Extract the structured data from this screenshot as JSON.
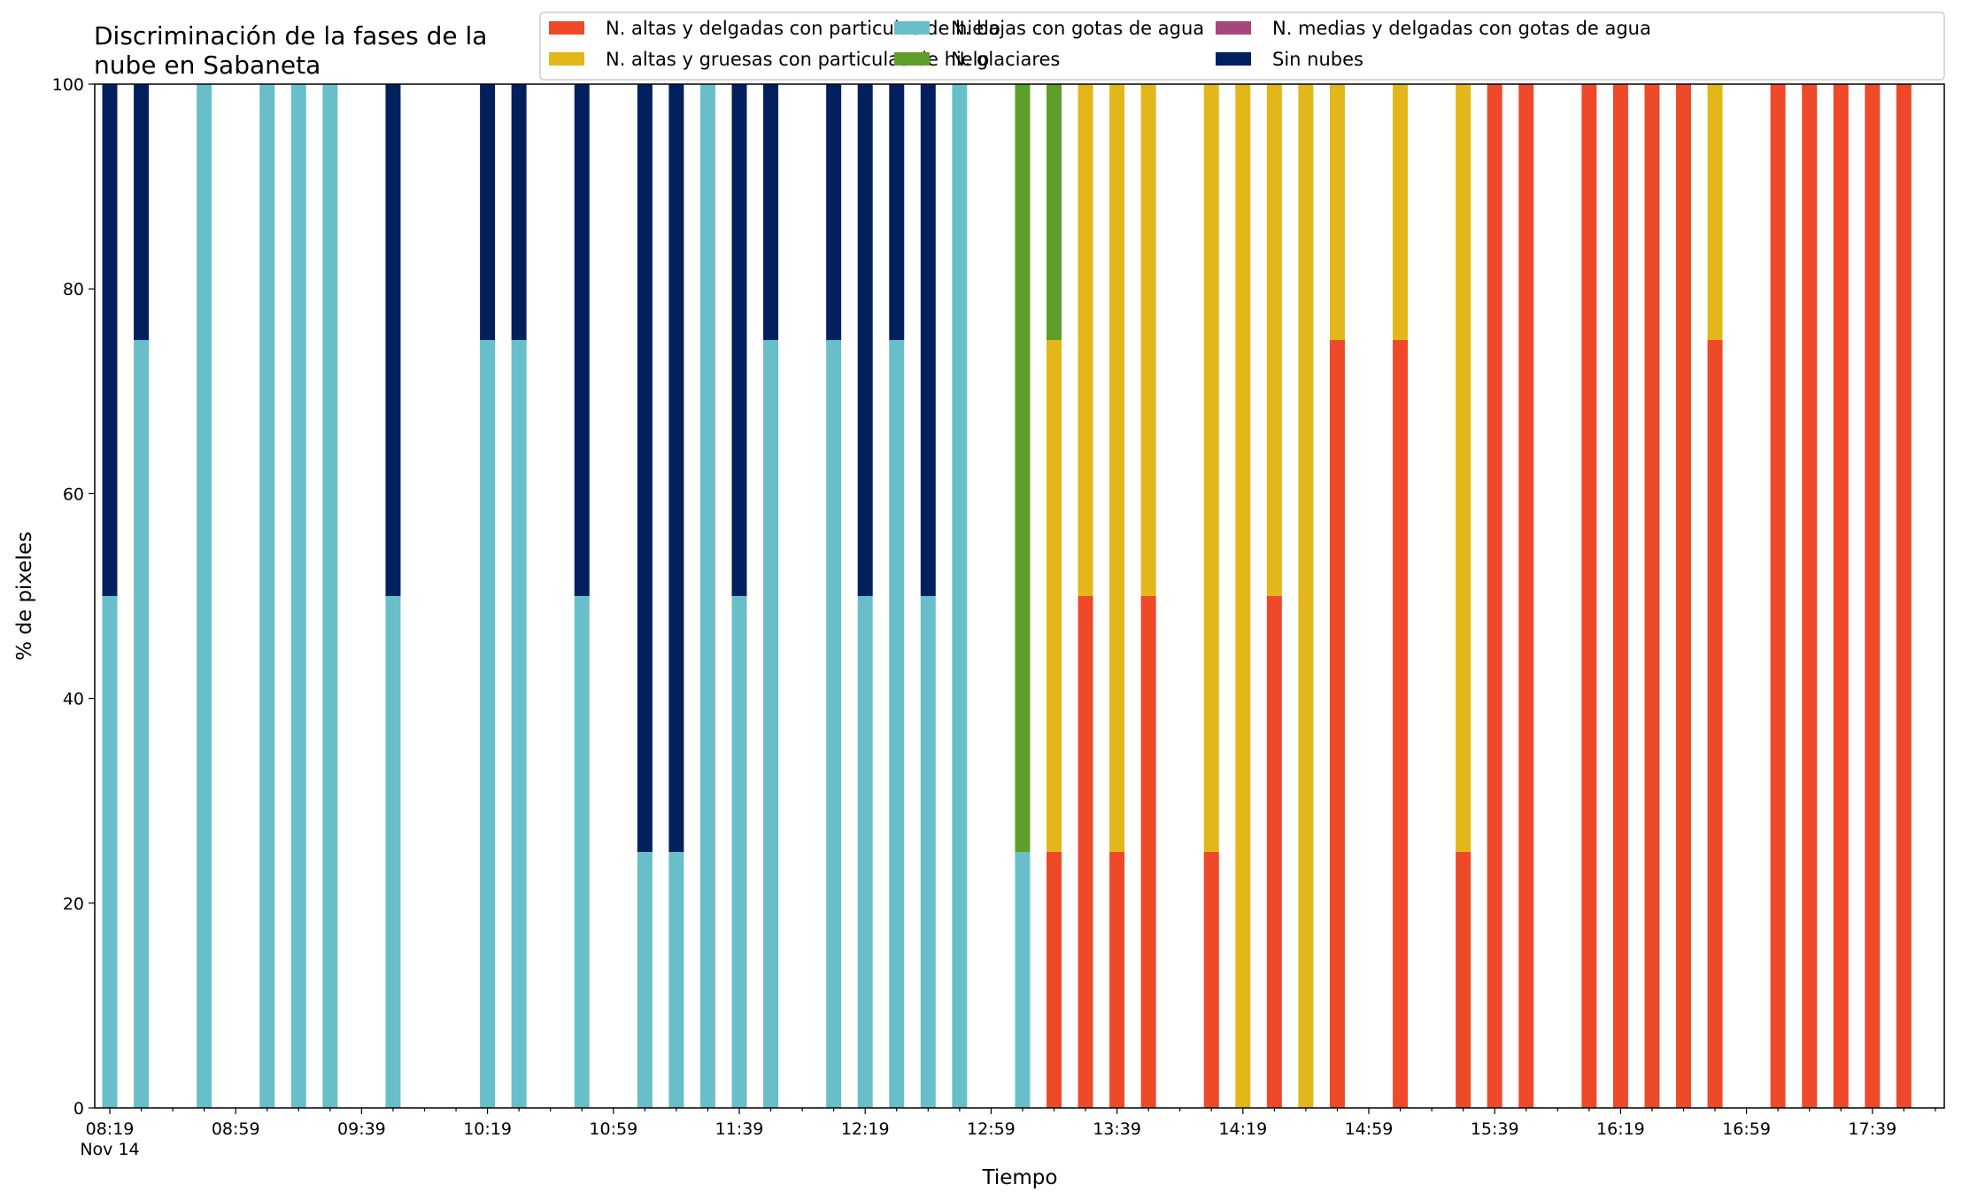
{
  "chart_data": {
    "type": "bar",
    "stacked": true,
    "title": "Discriminación de la fases de la nube en Sabaneta",
    "title_lines": [
      "Discriminación de la fases de la",
      "nube en Sabaneta"
    ],
    "xlabel": "Tiempo",
    "ylabel": "% de pixeles",
    "ylim": [
      0,
      100
    ],
    "yticks": [
      "0",
      "20",
      "40",
      "60",
      "80",
      "100"
    ],
    "xticks": [
      {
        "label": "08:19",
        "sub": "Nov 14",
        "slot": 0
      },
      {
        "label": "08:59",
        "slot": 4
      },
      {
        "label": "09:39",
        "slot": 8
      },
      {
        "label": "10:19",
        "slot": 12
      },
      {
        "label": "10:59",
        "slot": 16
      },
      {
        "label": "11:39",
        "slot": 20
      },
      {
        "label": "12:19",
        "slot": 24
      },
      {
        "label": "12:59",
        "slot": 28
      },
      {
        "label": "13:39",
        "slot": 32
      },
      {
        "label": "14:19",
        "slot": 36
      },
      {
        "label": "14:59",
        "slot": 40
      },
      {
        "label": "15:39",
        "slot": 44
      },
      {
        "label": "16:19",
        "slot": 48
      },
      {
        "label": "16:59",
        "slot": 52
      },
      {
        "label": "17:39",
        "slot": 56
      }
    ],
    "slot_count": 58,
    "legend_position": "top-right",
    "series": [
      {
        "key": "altas_delgadas",
        "name": "N. altas y delgadas con particulas de hielo",
        "color": "#ee4a2a"
      },
      {
        "key": "altas_gruesas",
        "name": "N. altas y gruesas con particulas de hielo",
        "color": "#e3b719"
      },
      {
        "key": "bajas",
        "name": "N. bajas con gotas de agua",
        "color": "#68bfc9"
      },
      {
        "key": "glaciares",
        "name": "N. glaciares",
        "color": "#5e9e2b"
      },
      {
        "key": "medias",
        "name": "N. medias y delgadas con gotas de agua",
        "color": "#a6477a"
      },
      {
        "key": "sin_nubes",
        "name": "Sin nubes",
        "color": "#03205e"
      }
    ],
    "bars": [
      {
        "slot": 0,
        "values": {
          "bajas": 50,
          "sin_nubes": 50
        }
      },
      {
        "slot": 1,
        "values": {
          "bajas": 75,
          "sin_nubes": 25
        }
      },
      {
        "slot": 3,
        "values": {
          "bajas": 100
        }
      },
      {
        "slot": 5,
        "values": {
          "bajas": 100
        }
      },
      {
        "slot": 6,
        "values": {
          "bajas": 100
        }
      },
      {
        "slot": 7,
        "values": {
          "bajas": 100
        }
      },
      {
        "slot": 9,
        "values": {
          "bajas": 50,
          "sin_nubes": 50
        }
      },
      {
        "slot": 12,
        "values": {
          "bajas": 75,
          "sin_nubes": 25
        }
      },
      {
        "slot": 13,
        "values": {
          "bajas": 75,
          "sin_nubes": 25
        }
      },
      {
        "slot": 15,
        "values": {
          "bajas": 50,
          "sin_nubes": 50
        }
      },
      {
        "slot": 17,
        "values": {
          "bajas": 25,
          "sin_nubes": 75
        }
      },
      {
        "slot": 18,
        "values": {
          "bajas": 25,
          "sin_nubes": 75
        }
      },
      {
        "slot": 19,
        "values": {
          "bajas": 100
        }
      },
      {
        "slot": 20,
        "values": {
          "bajas": 50,
          "sin_nubes": 50
        }
      },
      {
        "slot": 21,
        "values": {
          "bajas": 75,
          "sin_nubes": 25
        }
      },
      {
        "slot": 23,
        "values": {
          "bajas": 75,
          "sin_nubes": 25
        }
      },
      {
        "slot": 24,
        "values": {
          "bajas": 50,
          "sin_nubes": 50
        }
      },
      {
        "slot": 25,
        "values": {
          "bajas": 75,
          "sin_nubes": 25
        }
      },
      {
        "slot": 26,
        "values": {
          "bajas": 50,
          "sin_nubes": 50
        }
      },
      {
        "slot": 27,
        "values": {
          "bajas": 100
        }
      },
      {
        "slot": 29,
        "values": {
          "bajas": 25,
          "glaciares": 75
        }
      },
      {
        "slot": 30,
        "values": {
          "altas_delgadas": 25,
          "altas_gruesas": 50,
          "glaciares": 25
        }
      },
      {
        "slot": 31,
        "values": {
          "altas_delgadas": 50,
          "altas_gruesas": 50
        }
      },
      {
        "slot": 32,
        "values": {
          "altas_delgadas": 25,
          "altas_gruesas": 75
        }
      },
      {
        "slot": 33,
        "values": {
          "altas_delgadas": 50,
          "altas_gruesas": 50
        }
      },
      {
        "slot": 35,
        "values": {
          "altas_delgadas": 25,
          "altas_gruesas": 75
        }
      },
      {
        "slot": 36,
        "values": {
          "altas_gruesas": 100
        }
      },
      {
        "slot": 37,
        "values": {
          "altas_delgadas": 50,
          "altas_gruesas": 50
        }
      },
      {
        "slot": 38,
        "values": {
          "altas_gruesas": 100
        }
      },
      {
        "slot": 39,
        "values": {
          "altas_delgadas": 75,
          "altas_gruesas": 25
        }
      },
      {
        "slot": 41,
        "values": {
          "altas_delgadas": 75,
          "altas_gruesas": 25
        }
      },
      {
        "slot": 43,
        "values": {
          "altas_delgadas": 25,
          "altas_gruesas": 75
        }
      },
      {
        "slot": 44,
        "values": {
          "altas_delgadas": 100
        }
      },
      {
        "slot": 45,
        "values": {
          "altas_delgadas": 100
        }
      },
      {
        "slot": 47,
        "values": {
          "altas_delgadas": 100
        }
      },
      {
        "slot": 48,
        "values": {
          "altas_delgadas": 100
        }
      },
      {
        "slot": 49,
        "values": {
          "altas_delgadas": 100
        }
      },
      {
        "slot": 50,
        "values": {
          "altas_delgadas": 100
        }
      },
      {
        "slot": 51,
        "values": {
          "altas_delgadas": 75,
          "altas_gruesas": 25
        }
      },
      {
        "slot": 53,
        "values": {
          "altas_delgadas": 100
        }
      },
      {
        "slot": 54,
        "values": {
          "altas_delgadas": 100
        }
      },
      {
        "slot": 55,
        "values": {
          "altas_delgadas": 100
        }
      },
      {
        "slot": 56,
        "values": {
          "altas_delgadas": 100
        }
      },
      {
        "slot": 57,
        "values": {
          "altas_delgadas": 100
        }
      }
    ]
  }
}
